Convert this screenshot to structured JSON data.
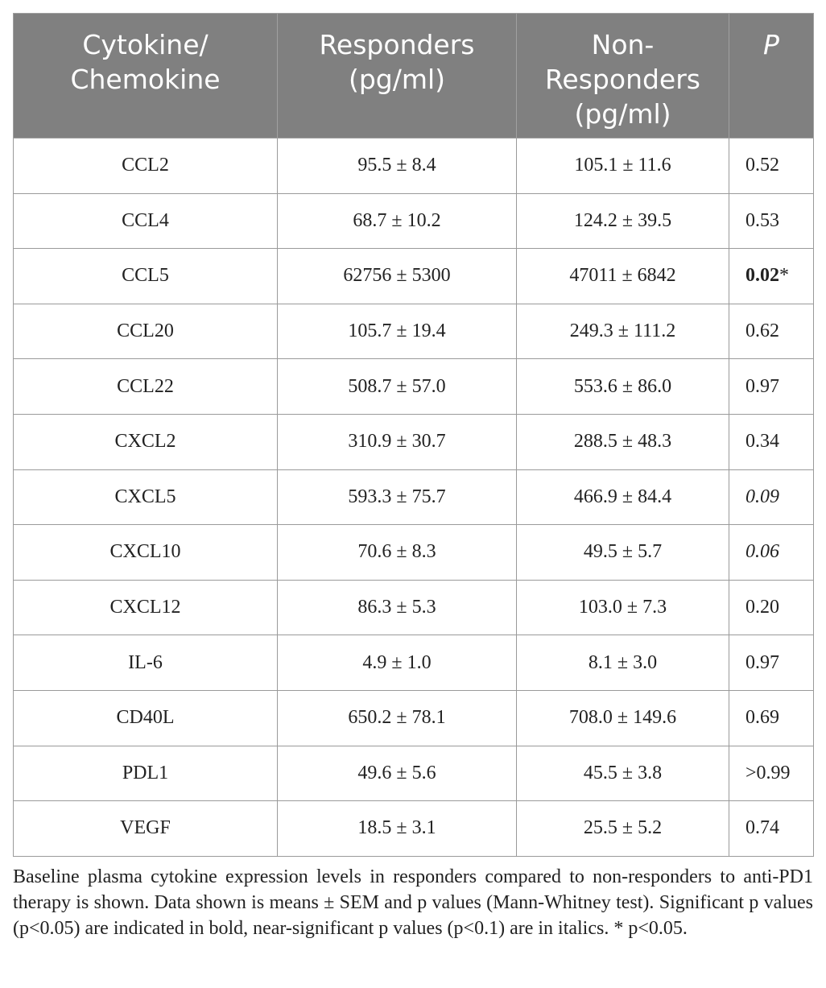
{
  "table": {
    "headers": [
      {
        "line1": "Cytokine/",
        "line2": "Chemokine",
        "line3": ""
      },
      {
        "line1": "Responders",
        "line2": "(pg/ml)",
        "line3": ""
      },
      {
        "line1": "Non-",
        "line2": "Responders",
        "line3": "(pg/ml)"
      },
      {
        "line1": "P",
        "line2": "",
        "line3": ""
      }
    ],
    "rows": [
      {
        "name": "CCL2",
        "responders": "95.5 ± 8.4",
        "non_responders": "105.1 ± 11.6",
        "p": "0.52",
        "p_star": "",
        "p_style": "normal"
      },
      {
        "name": "CCL4",
        "responders": "68.7 ± 10.2",
        "non_responders": "124.2 ± 39.5",
        "p": "0.53",
        "p_star": "",
        "p_style": "normal"
      },
      {
        "name": "CCL5",
        "responders": "62756 ± 5300",
        "non_responders": "47011 ± 6842",
        "p": "0.02",
        "p_star": "*",
        "p_style": "bold"
      },
      {
        "name": "CCL20",
        "responders": "105.7 ± 19.4",
        "non_responders": "249.3 ± 111.2",
        "p": "0.62",
        "p_star": "",
        "p_style": "normal"
      },
      {
        "name": "CCL22",
        "responders": "508.7 ± 57.0",
        "non_responders": "553.6 ± 86.0",
        "p": "0.97",
        "p_star": "",
        "p_style": "normal"
      },
      {
        "name": "CXCL2",
        "responders": "310.9 ± 30.7",
        "non_responders": "288.5 ± 48.3",
        "p": "0.34",
        "p_star": "",
        "p_style": "normal"
      },
      {
        "name": "CXCL5",
        "responders": "593.3 ± 75.7",
        "non_responders": "466.9 ± 84.4",
        "p": "0.09",
        "p_star": "",
        "p_style": "italic"
      },
      {
        "name": "CXCL10",
        "responders": "70.6 ± 8.3",
        "non_responders": "49.5 ± 5.7",
        "p": "0.06",
        "p_star": "",
        "p_style": "italic"
      },
      {
        "name": "CXCL12",
        "responders": "86.3 ± 5.3",
        "non_responders": "103.0 ± 7.3",
        "p": "0.20",
        "p_star": "",
        "p_style": "normal"
      },
      {
        "name": "IL-6",
        "responders": "4.9 ± 1.0",
        "non_responders": "8.1 ± 3.0",
        "p": "0.97",
        "p_star": "",
        "p_style": "normal"
      },
      {
        "name": "CD40L",
        "responders": "650.2 ± 78.1",
        "non_responders": "708.0 ± 149.6",
        "p": "0.69",
        "p_star": "",
        "p_style": "normal"
      },
      {
        "name": "PDL1",
        "responders": "49.6 ± 5.6",
        "non_responders": "45.5 ± 3.8",
        "p": ">0.99",
        "p_star": "",
        "p_style": "normal"
      },
      {
        "name": "VEGF",
        "responders": "18.5 ± 3.1",
        "non_responders": "25.5 ± 5.2",
        "p": "0.74",
        "p_star": "",
        "p_style": "normal"
      }
    ]
  },
  "caption": "Baseline plasma cytokine expression levels in responders compared to non-responders to anti-PD1 therapy is shown. Data shown is means ± SEM and p values (Mann-Whitney test). Significant p values (p<0.05) are indicated in bold, near-significant p values (p<0.1) are in italics. * p<0.05.",
  "colors": {
    "header_bg": "#808080",
    "header_text": "#ffffff",
    "grid": "#9a9a9a",
    "body_text": "#222222"
  }
}
